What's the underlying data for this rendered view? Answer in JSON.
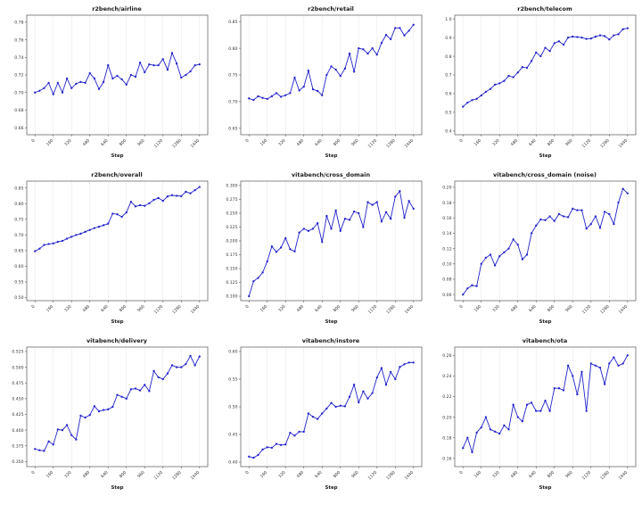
{
  "page": {
    "background": "#ffffff",
    "accent": "#2222cc",
    "grid_color": "#ebebeb",
    "spine_color": "#555555"
  },
  "chart_data": [
    {
      "type": "line",
      "title": "r2bench/airline",
      "xlabel": "Step",
      "ylabel": "",
      "x_start": 0,
      "x_step": 40,
      "xlim": [
        -72,
        1512
      ],
      "ylim": [
        0.652,
        0.788
      ],
      "xticks": [
        "0",
        "160",
        "320",
        "480",
        "640",
        "800",
        "960",
        "1120",
        "1280",
        "1440"
      ],
      "yticks": [
        "0.66",
        "0.68",
        "0.70",
        "0.72",
        "0.74",
        "0.76",
        "0.78"
      ],
      "grid": "vertical",
      "legend": "none",
      "line_color": "#2222cc",
      "marker": "dot",
      "values": [
        0.7,
        0.702,
        0.705,
        0.711,
        0.698,
        0.711,
        0.7,
        0.716,
        0.705,
        0.71,
        0.712,
        0.711,
        0.722,
        0.716,
        0.704,
        0.712,
        0.731,
        0.716,
        0.719,
        0.715,
        0.709,
        0.72,
        0.718,
        0.734,
        0.723,
        0.732,
        0.731,
        0.731,
        0.738,
        0.726,
        0.745,
        0.733,
        0.717,
        0.72,
        0.724,
        0.731,
        0.732
      ]
    },
    {
      "type": "line",
      "title": "r2bench/retail",
      "xlabel": "Step",
      "ylabel": "",
      "x_start": 0,
      "x_step": 40,
      "xlim": [
        -72,
        1512
      ],
      "ylim": [
        0.638,
        0.862
      ],
      "xticks": [
        "0",
        "160",
        "320",
        "480",
        "640",
        "800",
        "960",
        "1120",
        "1280",
        "1440"
      ],
      "yticks": [
        "0.65",
        "0.70",
        "0.75",
        "0.80",
        "0.85"
      ],
      "grid": "vertical",
      "legend": "none",
      "line_color": "#2222cc",
      "marker": "dot",
      "values": [
        0.706,
        0.703,
        0.71,
        0.707,
        0.705,
        0.71,
        0.716,
        0.709,
        0.712,
        0.716,
        0.745,
        0.721,
        0.728,
        0.758,
        0.723,
        0.72,
        0.712,
        0.75,
        0.766,
        0.76,
        0.748,
        0.762,
        0.79,
        0.756,
        0.8,
        0.798,
        0.79,
        0.8,
        0.788,
        0.81,
        0.825,
        0.817,
        0.838,
        0.838,
        0.824,
        0.833,
        0.844
      ]
    },
    {
      "type": "line",
      "title": "r2bench/telecom",
      "xlabel": "Step",
      "ylabel": "",
      "x_start": 0,
      "x_step": 40,
      "xlim": [
        -72,
        1512
      ],
      "ylim": [
        0.38,
        1.02
      ],
      "xticks": [
        "0",
        "160",
        "320",
        "480",
        "640",
        "800",
        "960",
        "1120",
        "1280",
        "1440"
      ],
      "yticks": [
        "0.4",
        "0.5",
        "0.6",
        "0.7",
        "0.8",
        "0.9",
        "1.0"
      ],
      "grid": "vertical",
      "legend": "none",
      "line_color": "#2222cc",
      "marker": "dot",
      "values": [
        0.53,
        0.552,
        0.565,
        0.572,
        0.59,
        0.61,
        0.625,
        0.648,
        0.655,
        0.668,
        0.695,
        0.688,
        0.713,
        0.742,
        0.738,
        0.775,
        0.82,
        0.8,
        0.845,
        0.828,
        0.87,
        0.88,
        0.862,
        0.9,
        0.905,
        0.903,
        0.9,
        0.893,
        0.895,
        0.905,
        0.912,
        0.908,
        0.89,
        0.912,
        0.918,
        0.945,
        0.95
      ]
    },
    {
      "type": "line",
      "title": "r2bench/overall",
      "xlabel": "Step",
      "ylabel": "",
      "x_start": 0,
      "x_step": 40,
      "xlim": [
        -72,
        1512
      ],
      "ylim": [
        0.49,
        0.872
      ],
      "xticks": [
        "0",
        "160",
        "320",
        "480",
        "640",
        "800",
        "960",
        "1120",
        "1280",
        "1440"
      ],
      "yticks": [
        "0.50",
        "0.55",
        "0.60",
        "0.65",
        "0.70",
        "0.75",
        "0.80",
        "0.85"
      ],
      "grid": "vertical",
      "legend": "none",
      "line_color": "#2222cc",
      "marker": "dot",
      "values": [
        0.648,
        0.656,
        0.668,
        0.671,
        0.673,
        0.678,
        0.681,
        0.688,
        0.694,
        0.7,
        0.704,
        0.71,
        0.716,
        0.722,
        0.726,
        0.731,
        0.736,
        0.768,
        0.766,
        0.758,
        0.772,
        0.806,
        0.791,
        0.795,
        0.793,
        0.801,
        0.812,
        0.818,
        0.809,
        0.823,
        0.827,
        0.825,
        0.824,
        0.838,
        0.833,
        0.843,
        0.853
      ]
    },
    {
      "type": "line",
      "title": "vitabench/cross_domain",
      "xlabel": "Step",
      "ylabel": "",
      "x_start": 0,
      "x_step": 40,
      "xlim": [
        -72,
        1512
      ],
      "ylim": [
        0.092,
        0.308
      ],
      "xticks": [
        "0",
        "160",
        "320",
        "480",
        "640",
        "800",
        "960",
        "1120",
        "1280",
        "1440"
      ],
      "yticks": [
        "0.100",
        "0.125",
        "0.150",
        "0.175",
        "0.200",
        "0.225",
        "0.250",
        "0.275",
        "0.300"
      ],
      "grid": "vertical",
      "legend": "none",
      "line_color": "#2222cc",
      "marker": "dot",
      "values": [
        0.1,
        0.127,
        0.133,
        0.143,
        0.163,
        0.19,
        0.18,
        0.188,
        0.205,
        0.185,
        0.181,
        0.215,
        0.222,
        0.218,
        0.222,
        0.232,
        0.198,
        0.245,
        0.222,
        0.255,
        0.218,
        0.24,
        0.238,
        0.253,
        0.25,
        0.225,
        0.27,
        0.265,
        0.27,
        0.235,
        0.252,
        0.24,
        0.28,
        0.29,
        0.242,
        0.272,
        0.258
      ]
    },
    {
      "type": "line",
      "title": "vitabench/cross_domain (noise)",
      "xlabel": "Step",
      "ylabel": "",
      "x_start": 0,
      "x_step": 40,
      "xlim": [
        -72,
        1512
      ],
      "ylim": [
        0.052,
        0.208
      ],
      "xticks": [
        "0",
        "160",
        "320",
        "480",
        "640",
        "800",
        "960",
        "1120",
        "1280",
        "1440"
      ],
      "yticks": [
        "0.06",
        "0.08",
        "0.10",
        "0.12",
        "0.14",
        "0.16",
        "0.18",
        "0.20"
      ],
      "grid": "vertical",
      "legend": "none",
      "line_color": "#2222cc",
      "marker": "dot",
      "values": [
        0.06,
        0.068,
        0.072,
        0.071,
        0.1,
        0.108,
        0.112,
        0.098,
        0.11,
        0.115,
        0.12,
        0.132,
        0.125,
        0.106,
        0.112,
        0.14,
        0.15,
        0.158,
        0.157,
        0.162,
        0.156,
        0.165,
        0.162,
        0.161,
        0.172,
        0.17,
        0.17,
        0.146,
        0.152,
        0.162,
        0.147,
        0.168,
        0.165,
        0.152,
        0.18,
        0.198,
        0.192
      ]
    },
    {
      "type": "line",
      "title": "vitabench/delivery",
      "xlabel": "Step",
      "ylabel": "",
      "x_start": 0,
      "x_step": 40,
      "xlim": [
        -72,
        1512
      ],
      "ylim": [
        0.342,
        0.532
      ],
      "xticks": [
        "0",
        "160",
        "320",
        "480",
        "640",
        "800",
        "960",
        "1120",
        "1280",
        "1440"
      ],
      "yticks": [
        "0.350",
        "0.375",
        "0.400",
        "0.425",
        "0.450",
        "0.475",
        "0.500",
        "0.525"
      ],
      "grid": "vertical",
      "legend": "none",
      "line_color": "#2222cc",
      "marker": "dot",
      "values": [
        0.37,
        0.368,
        0.367,
        0.382,
        0.377,
        0.401,
        0.4,
        0.408,
        0.392,
        0.385,
        0.423,
        0.42,
        0.424,
        0.438,
        0.43,
        0.432,
        0.433,
        0.437,
        0.456,
        0.453,
        0.45,
        0.465,
        0.466,
        0.463,
        0.472,
        0.462,
        0.494,
        0.484,
        0.481,
        0.49,
        0.503,
        0.5,
        0.5,
        0.505,
        0.518,
        0.503,
        0.517
      ]
    },
    {
      "type": "line",
      "title": "vitabench/instore",
      "xlabel": "Step",
      "ylabel": "",
      "x_start": 0,
      "x_step": 40,
      "xlim": [
        -72,
        1512
      ],
      "ylim": [
        0.392,
        0.608
      ],
      "xticks": [
        "0",
        "160",
        "320",
        "480",
        "640",
        "800",
        "960",
        "1120",
        "1280",
        "1440"
      ],
      "yticks": [
        "0.40",
        "0.45",
        "0.50",
        "0.55",
        "0.60"
      ],
      "grid": "vertical",
      "legend": "none",
      "line_color": "#2222cc",
      "marker": "dot",
      "values": [
        0.41,
        0.408,
        0.413,
        0.423,
        0.427,
        0.426,
        0.433,
        0.431,
        0.432,
        0.453,
        0.448,
        0.455,
        0.455,
        0.488,
        0.482,
        0.478,
        0.488,
        0.497,
        0.507,
        0.5,
        0.502,
        0.501,
        0.518,
        0.54,
        0.508,
        0.528,
        0.515,
        0.525,
        0.553,
        0.57,
        0.54,
        0.563,
        0.55,
        0.572,
        0.577,
        0.58,
        0.58
      ]
    },
    {
      "type": "line",
      "title": "vitabench/ota",
      "xlabel": "Step",
      "ylabel": "",
      "x_start": 0,
      "x_step": 40,
      "xlim": [
        -72,
        1512
      ],
      "ylim": [
        0.152,
        0.268
      ],
      "xticks": [
        "0",
        "160",
        "320",
        "480",
        "640",
        "800",
        "960",
        "1120",
        "1280",
        "1440"
      ],
      "yticks": [
        "0.16",
        "0.18",
        "0.20",
        "0.22",
        "0.24",
        "0.26"
      ],
      "grid": "vertical",
      "legend": "none",
      "line_color": "#2222cc",
      "marker": "dot",
      "values": [
        0.17,
        0.18,
        0.166,
        0.185,
        0.19,
        0.2,
        0.188,
        0.186,
        0.184,
        0.192,
        0.188,
        0.212,
        0.2,
        0.196,
        0.212,
        0.214,
        0.206,
        0.206,
        0.216,
        0.206,
        0.228,
        0.228,
        0.226,
        0.25,
        0.24,
        0.222,
        0.244,
        0.206,
        0.252,
        0.25,
        0.248,
        0.232,
        0.252,
        0.258,
        0.25,
        0.252,
        0.26
      ]
    }
  ]
}
